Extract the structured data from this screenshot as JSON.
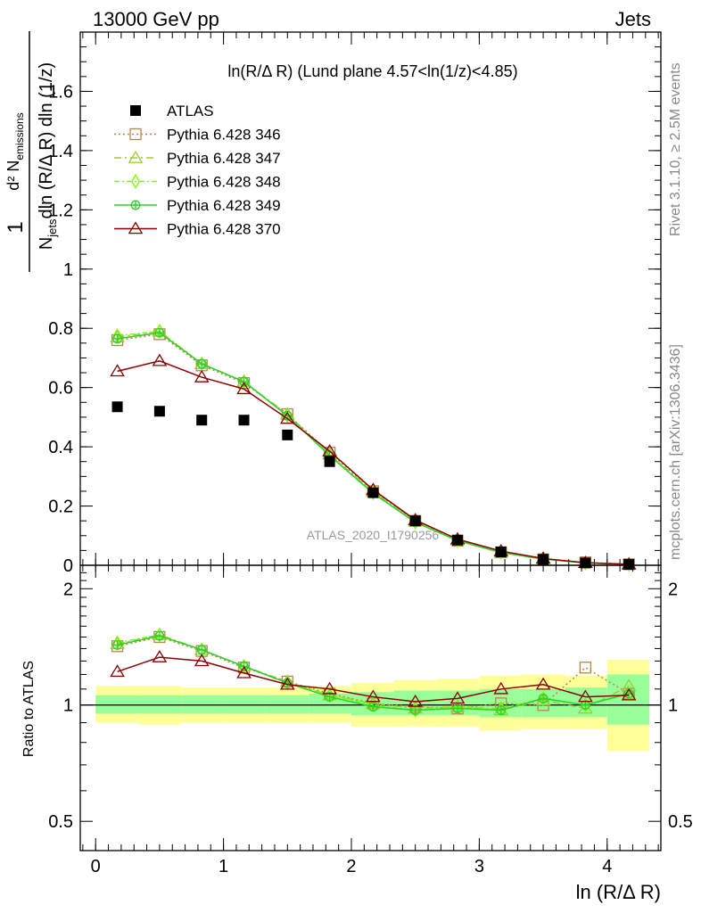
{
  "header": {
    "energy_label": "13000 GeV pp",
    "category_label": "Jets"
  },
  "side_text": {
    "rivet": "Rivet 3.1.10, ≥ 2.5M events",
    "mcplots": "mcplots.cern.ch [arXiv:1306.3436]"
  },
  "watermark": "ATLAS_2020_I1790256",
  "colors": {
    "atlas": "#000000",
    "p346": "#b8864b",
    "p347": "#9acd32",
    "p348": "#7cfc00",
    "p349": "#32cd32",
    "p370": "#8b0000",
    "band_yellow": "#ffff99",
    "band_green": "#99ff99"
  },
  "chart_data": [
    {
      "type": "line",
      "title": "ln(R/Δ R) (Lund plane 4.57<ln(1/z)<4.85)",
      "xlabel": "",
      "ylabel": "1/N_jets d²N_emissions / dln(R/Δ R) dln(1/z)",
      "xlim": [
        -0.12,
        4.42
      ],
      "ylim": [
        0,
        1.8
      ],
      "yticks": [
        0.2,
        0.4,
        0.6,
        0.8,
        1,
        1.2,
        1.4,
        1.6
      ],
      "ytick_labels": [
        "0.2",
        "0.4",
        "0.6",
        "0.8",
        "1",
        "1.2",
        "1.4",
        "1.6"
      ],
      "legend_position": "top-left",
      "x": [
        0.17,
        0.5,
        0.83,
        1.16,
        1.5,
        1.83,
        2.17,
        2.5,
        2.83,
        3.17,
        3.5,
        3.83,
        4.17
      ],
      "series": [
        {
          "name": "ATLAS",
          "marker": "square-filled",
          "values": [
            0.535,
            0.52,
            0.49,
            0.49,
            0.44,
            0.35,
            0.245,
            0.15,
            0.085,
            0.045,
            0.02,
            0.008,
            0.003
          ]
        },
        {
          "name": "Pythia 6.428 346",
          "marker": "square-open",
          "values": [
            0.76,
            0.78,
            0.675,
            0.615,
            0.51,
            0.38,
            0.25,
            0.15,
            0.083,
            0.044,
            0.02,
            0.01,
            0.0035
          ]
        },
        {
          "name": "Pythia 6.428 347",
          "marker": "triangle-open",
          "values": [
            0.77,
            0.79,
            0.68,
            0.62,
            0.51,
            0.375,
            0.248,
            0.148,
            0.085,
            0.043,
            0.021,
            0.008,
            0.0033
          ]
        },
        {
          "name": "Pythia 6.428 348",
          "marker": "diamond-open",
          "values": [
            0.775,
            0.79,
            0.68,
            0.62,
            0.505,
            0.372,
            0.245,
            0.146,
            0.084,
            0.044,
            0.021,
            0.008,
            0.0032
          ]
        },
        {
          "name": "Pythia 6.428 349",
          "marker": "cross-circle",
          "values": [
            0.765,
            0.785,
            0.68,
            0.62,
            0.505,
            0.37,
            0.243,
            0.145,
            0.083,
            0.043,
            0.021,
            0.008,
            0.0032
          ]
        },
        {
          "name": "Pythia 6.428 370",
          "marker": "triangle-open",
          "values": [
            0.655,
            0.69,
            0.635,
            0.595,
            0.495,
            0.385,
            0.255,
            0.153,
            0.088,
            0.048,
            0.023,
            0.0085,
            0.0033
          ]
        }
      ]
    },
    {
      "type": "line",
      "title": "",
      "xlabel": "ln (R/Δ R)",
      "ylabel": "Ratio to ATLAS",
      "xlim": [
        -0.12,
        4.42
      ],
      "ylim": [
        0.42,
        2.3
      ],
      "log_y": true,
      "yticks": [
        0.5,
        1,
        2
      ],
      "ytick_labels": [
        "0.5",
        "1",
        "2"
      ],
      "xticks": [
        0,
        1,
        2,
        3,
        4
      ],
      "xtick_labels": [
        "0",
        "1",
        "2",
        "3",
        "4"
      ],
      "x": [
        0.17,
        0.5,
        0.83,
        1.16,
        1.5,
        1.83,
        2.17,
        2.5,
        2.83,
        3.17,
        3.5,
        3.83,
        4.17
      ],
      "bands": {
        "edges": [
          0,
          0.33,
          0.67,
          1.0,
          1.33,
          1.67,
          2.0,
          2.33,
          2.67,
          3.0,
          3.33,
          3.67,
          4.0,
          4.33
        ],
        "yellow_low": [
          0.9,
          0.89,
          0.9,
          0.9,
          0.9,
          0.9,
          0.88,
          0.88,
          0.88,
          0.86,
          0.87,
          0.87,
          0.76
        ],
        "yellow_high": [
          1.12,
          1.12,
          1.11,
          1.11,
          1.11,
          1.12,
          1.14,
          1.16,
          1.17,
          1.19,
          1.2,
          1.19,
          1.31
        ],
        "green_low": [
          0.95,
          0.95,
          0.95,
          0.95,
          0.95,
          0.95,
          0.94,
          0.94,
          0.94,
          0.93,
          0.93,
          0.93,
          0.89
        ],
        "green_high": [
          1.06,
          1.06,
          1.06,
          1.06,
          1.06,
          1.07,
          1.08,
          1.09,
          1.09,
          1.1,
          1.1,
          1.11,
          1.2
        ]
      },
      "series": [
        {
          "name": "Pythia 6.428 346",
          "values": [
            1.42,
            1.5,
            1.38,
            1.25,
            1.15,
            1.07,
            1.01,
            0.99,
            0.98,
            1.01,
            1.0,
            1.25,
            1.07
          ]
        },
        {
          "name": "Pythia 6.428 347",
          "values": [
            1.44,
            1.52,
            1.39,
            1.26,
            1.15,
            1.06,
            1.01,
            0.98,
            0.99,
            0.97,
            1.03,
            0.98,
            1.12
          ]
        },
        {
          "name": "Pythia 6.428 348",
          "values": [
            1.45,
            1.52,
            1.39,
            1.26,
            1.14,
            1.06,
            1.0,
            0.97,
            0.99,
            0.98,
            1.04,
            1.0,
            1.07
          ]
        },
        {
          "name": "Pythia 6.428 349",
          "values": [
            1.43,
            1.51,
            1.39,
            1.26,
            1.14,
            1.05,
            0.99,
            0.97,
            0.98,
            0.97,
            1.04,
            1.0,
            1.07
          ]
        },
        {
          "name": "Pythia 6.428 370",
          "values": [
            1.22,
            1.33,
            1.3,
            1.21,
            1.13,
            1.1,
            1.05,
            1.02,
            1.04,
            1.1,
            1.13,
            1.05,
            1.06
          ]
        }
      ]
    }
  ]
}
